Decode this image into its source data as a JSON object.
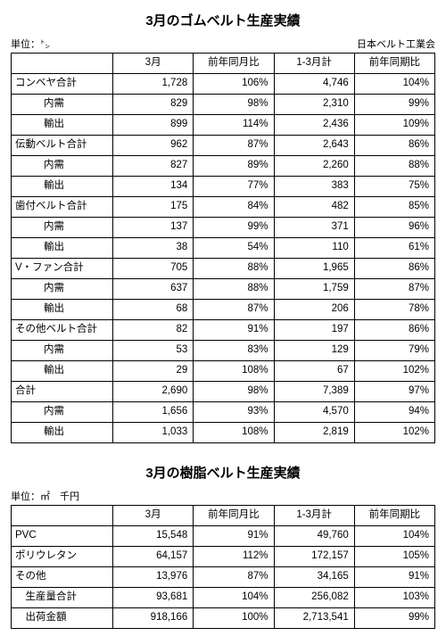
{
  "table1": {
    "title": "3月のゴムベルト生産実績",
    "unit": "単位：㌧",
    "source": "日本ベルト工業会",
    "columns": [
      "3月",
      "前年同月比",
      "1-3月計",
      "前年同期比"
    ],
    "rows": [
      {
        "label": "コンベヤ合計",
        "indent": 0,
        "v": [
          "1,728",
          "106%",
          "4,746",
          "104%"
        ]
      },
      {
        "label": "内需",
        "indent": 1,
        "v": [
          "829",
          "98%",
          "2,310",
          "99%"
        ]
      },
      {
        "label": "輸出",
        "indent": 1,
        "v": [
          "899",
          "114%",
          "2,436",
          "109%"
        ]
      },
      {
        "label": "伝動ベルト合計",
        "indent": 0,
        "v": [
          "962",
          "87%",
          "2,643",
          "86%"
        ]
      },
      {
        "label": "内需",
        "indent": 1,
        "v": [
          "827",
          "89%",
          "2,260",
          "88%"
        ]
      },
      {
        "label": "輸出",
        "indent": 1,
        "v": [
          "134",
          "77%",
          "383",
          "75%"
        ]
      },
      {
        "label": "歯付ベルト合計",
        "indent": 0,
        "v": [
          "175",
          "84%",
          "482",
          "85%"
        ]
      },
      {
        "label": "内需",
        "indent": 1,
        "v": [
          "137",
          "99%",
          "371",
          "96%"
        ]
      },
      {
        "label": "輸出",
        "indent": 1,
        "v": [
          "38",
          "54%",
          "110",
          "61%"
        ]
      },
      {
        "label": "V・ファン合計",
        "indent": 0,
        "v": [
          "705",
          "88%",
          "1,965",
          "86%"
        ]
      },
      {
        "label": "内需",
        "indent": 1,
        "v": [
          "637",
          "88%",
          "1,759",
          "87%"
        ]
      },
      {
        "label": "輸出",
        "indent": 1,
        "v": [
          "68",
          "87%",
          "206",
          "78%"
        ]
      },
      {
        "label": "その他ベルト合計",
        "indent": 0,
        "v": [
          "82",
          "91%",
          "197",
          "86%"
        ]
      },
      {
        "label": "内需",
        "indent": 1,
        "v": [
          "53",
          "83%",
          "129",
          "79%"
        ]
      },
      {
        "label": "輸出",
        "indent": 1,
        "v": [
          "29",
          "108%",
          "67",
          "102%"
        ]
      },
      {
        "label": "合計",
        "indent": 0,
        "v": [
          "2,690",
          "98%",
          "7,389",
          "97%"
        ]
      },
      {
        "label": "内需",
        "indent": 1,
        "v": [
          "1,656",
          "93%",
          "4,570",
          "94%"
        ]
      },
      {
        "label": "輸出",
        "indent": 1,
        "v": [
          "1,033",
          "108%",
          "2,819",
          "102%"
        ]
      }
    ]
  },
  "table2": {
    "title": "3月の樹脂ベルト生産実績",
    "unit": "単位：㎡　千円",
    "columns": [
      "3月",
      "前年同月比",
      "1-3月計",
      "前年同期比"
    ],
    "rows": [
      {
        "label": "PVC",
        "indent": 0,
        "v": [
          "15,548",
          "91%",
          "49,760",
          "104%"
        ]
      },
      {
        "label": "ポリウレタン",
        "indent": 0,
        "v": [
          "64,157",
          "112%",
          "172,157",
          "105%"
        ]
      },
      {
        "label": "その他",
        "indent": 0,
        "v": [
          "13,976",
          "87%",
          "34,165",
          "91%"
        ]
      },
      {
        "label": "　生産量合計",
        "indent": 0,
        "v": [
          "93,681",
          "104%",
          "256,082",
          "103%"
        ]
      },
      {
        "label": "　出荷金額",
        "indent": 0,
        "v": [
          "918,166",
          "100%",
          "2,713,541",
          "99%"
        ]
      }
    ]
  }
}
